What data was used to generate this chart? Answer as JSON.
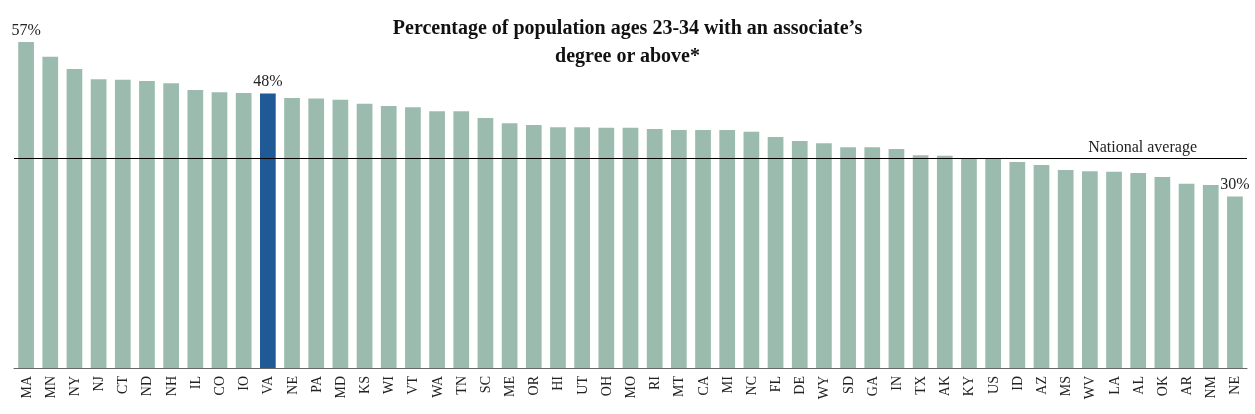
{
  "chart_data": {
    "type": "bar",
    "title": "Percentage of population ages 23-34 with an associate’s\ndegree or above*",
    "categories": [
      "MA",
      "MN",
      "NY",
      "NJ",
      "CT",
      "ND",
      "NH",
      "IL",
      "CO",
      "IO",
      "VA",
      "NE",
      "PA",
      "MD",
      "KS",
      "WI",
      "VT",
      "WA",
      "TN",
      "SC",
      "ME",
      "OR",
      "HI",
      "UT",
      "OH",
      "MO",
      "RI",
      "MT",
      "CA",
      "MI",
      "NC",
      "FL",
      "DE",
      "WY",
      "SD",
      "GA",
      "IN",
      "TX",
      "AK",
      "KY",
      "US",
      "ID",
      "AZ",
      "MS",
      "WV",
      "LA",
      "AL",
      "OK",
      "AR",
      "NM",
      "NE"
    ],
    "values": [
      57,
      54.4,
      52.3,
      50.5,
      50.4,
      50.2,
      49.8,
      48.6,
      48.2,
      48.1,
      48,
      47.2,
      47.1,
      46.9,
      46.2,
      45.8,
      45.6,
      44.9,
      44.9,
      43.7,
      42.8,
      42.5,
      42.1,
      42.1,
      42,
      42,
      41.8,
      41.6,
      41.6,
      41.6,
      41.3,
      40.4,
      39.7,
      39.3,
      38.6,
      38.6,
      38.3,
      37.2,
      37.1,
      36.7,
      36.7,
      36,
      35.5,
      34.6,
      34.4,
      34.3,
      34.1,
      33.4,
      32.2,
      32,
      30
    ],
    "value_labels": [
      "57%",
      null,
      null,
      null,
      null,
      null,
      null,
      null,
      null,
      null,
      "48%",
      null,
      null,
      null,
      null,
      null,
      null,
      null,
      null,
      null,
      null,
      null,
      null,
      null,
      null,
      null,
      null,
      null,
      null,
      null,
      null,
      null,
      null,
      null,
      null,
      null,
      null,
      null,
      null,
      null,
      null,
      null,
      null,
      null,
      null,
      null,
      null,
      null,
      null,
      null,
      "30%"
    ],
    "colors": [
      "#9bbbae",
      "#9bbbae",
      "#9bbbae",
      "#9bbbae",
      "#9bbbae",
      "#9bbbae",
      "#9bbbae",
      "#9bbbae",
      "#9bbbae",
      "#9bbbae",
      "#1f5a96",
      "#9bbbae",
      "#9bbbae",
      "#9bbbae",
      "#9bbbae",
      "#9bbbae",
      "#9bbbae",
      "#9bbbae",
      "#9bbbae",
      "#9bbbae",
      "#9bbbae",
      "#9bbbae",
      "#9bbbae",
      "#9bbbae",
      "#9bbbae",
      "#9bbbae",
      "#9bbbae",
      "#9bbbae",
      "#9bbbae",
      "#9bbbae",
      "#9bbbae",
      "#9bbbae",
      "#9bbbae",
      "#9bbbae",
      "#9bbbae",
      "#9bbbae",
      "#9bbbae",
      "#9bbbae",
      "#9bbbae",
      "#9bbbae",
      "#9bbbae",
      "#9bbbae",
      "#9bbbae",
      "#9bbbae",
      "#9bbbae",
      "#9bbbae",
      "#9bbbae",
      "#9bbbae",
      "#9bbbae",
      "#9bbbae",
      "#9bbbae"
    ],
    "ref_lines": [
      {
        "axis": "y",
        "value": 36.7,
        "label": "National average",
        "color": "#000000"
      }
    ],
    "tick_labels": "x",
    "grid": false
  }
}
